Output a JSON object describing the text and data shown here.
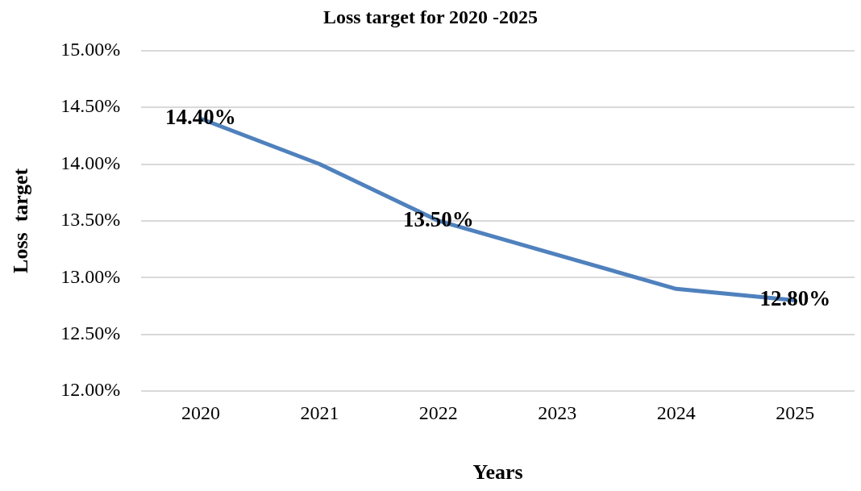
{
  "chart_data": {
    "type": "line",
    "title": "Loss target for 2020 -2025",
    "xlabel": "Years",
    "ylabel": "Loss  target",
    "categories": [
      "2020",
      "2021",
      "2022",
      "2023",
      "2024",
      "2025"
    ],
    "series": [
      {
        "color": "#4f81bd",
        "values": [
          14.4,
          14.0,
          13.5,
          13.2,
          12.9,
          12.8
        ],
        "value_labels": [
          "14.40%",
          null,
          "13.50%",
          null,
          null,
          "12.80%"
        ]
      }
    ],
    "ylim": [
      12,
      15
    ],
    "yticks": [
      {
        "value": 12,
        "label": "12.00%"
      },
      {
        "value": 12.5,
        "label": "12.50%"
      },
      {
        "value": 13,
        "label": "13.00%"
      },
      {
        "value": 13.5,
        "label": "13.50%"
      },
      {
        "value": 14,
        "label": "14.00%"
      },
      {
        "value": 14.5,
        "label": "14.50%"
      },
      {
        "value": 15,
        "label": "15.00%"
      }
    ],
    "grid": "y",
    "legend": false,
    "marker": "none",
    "line_style": "solid"
  }
}
